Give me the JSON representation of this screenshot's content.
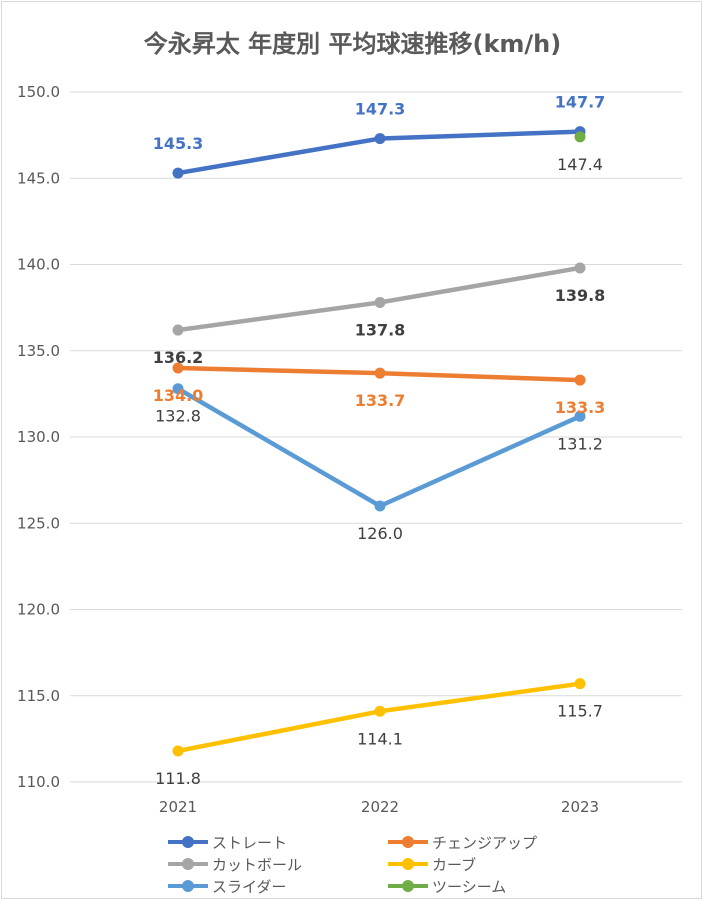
{
  "chart_data": {
    "type": "line",
    "title": "今永昇太 年度別 平均球速推移(km/h)",
    "categories": [
      "2021",
      "2022",
      "2023"
    ],
    "ylim": [
      110,
      150
    ],
    "yticks": [
      "110.0",
      "115.0",
      "120.0",
      "125.0",
      "130.0",
      "135.0",
      "140.0",
      "145.0",
      "150.0"
    ],
    "grid": true,
    "legend_position": "bottom",
    "series": [
      {
        "name": "ストレート",
        "color": "#4472c4",
        "values": [
          145.3,
          147.3,
          147.7
        ],
        "labels": [
          "145.3",
          "147.3",
          "147.7"
        ],
        "label_color": "#4472c4",
        "label_pos": "above",
        "bold": true
      },
      {
        "name": "チェンジアップ",
        "color": "#ed7d31",
        "values": [
          134.0,
          133.7,
          133.3
        ],
        "labels": [
          "134.0",
          "133.7",
          "133.3"
        ],
        "label_color": "#ed7d31",
        "label_pos": "below",
        "bold": true
      },
      {
        "name": "カットボール",
        "color": "#a5a5a5",
        "values": [
          136.2,
          137.8,
          139.8
        ],
        "labels": [
          "136.2",
          "137.8",
          "139.8"
        ],
        "label_color": "#404040",
        "label_pos": "below",
        "bold": true
      },
      {
        "name": "カーブ",
        "color": "#ffc000",
        "values": [
          111.8,
          114.1,
          115.7
        ],
        "labels": [
          "111.8",
          "114.1",
          "115.7"
        ],
        "label_color": "#404040",
        "label_pos": "below",
        "bold": false
      },
      {
        "name": "スライダー",
        "color": "#5b9bd5",
        "values": [
          132.8,
          126.0,
          131.2
        ],
        "labels": [
          "132.8",
          "126.0",
          "131.2"
        ],
        "label_color": "#404040",
        "label_pos": "below",
        "bold": false
      },
      {
        "name": "ツーシーム",
        "color": "#70ad47",
        "values": [
          null,
          null,
          147.4
        ],
        "labels": [
          null,
          null,
          "147.4"
        ],
        "label_color": "#404040",
        "label_pos": "below",
        "bold": false
      }
    ]
  }
}
